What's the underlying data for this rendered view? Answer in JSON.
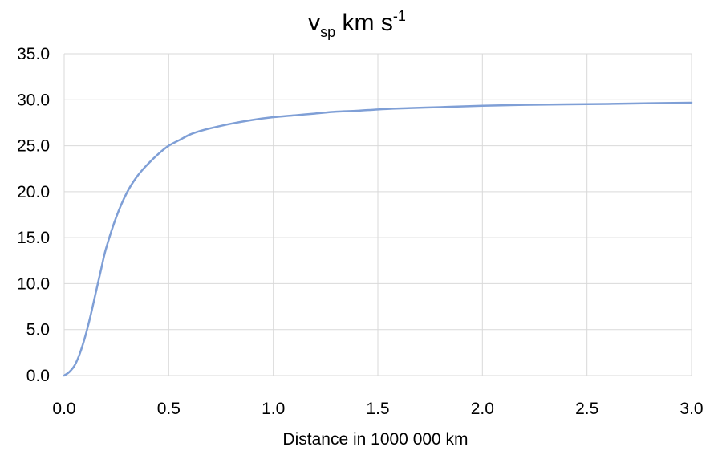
{
  "chart_data": {
    "type": "line",
    "title": {
      "main": "v",
      "subscript": "sp",
      "unit": " km s",
      "superscript": "-1"
    },
    "xlabel": "Distance in 1000 000 km",
    "ylabel": "",
    "xlim": [
      0,
      3.0
    ],
    "ylim": [
      0,
      35.0
    ],
    "xticks": [
      "0.0",
      "0.5",
      "1.0",
      "1.5",
      "2.0",
      "2.5",
      "3.0"
    ],
    "yticks": [
      "0.0",
      "5.0",
      "10.0",
      "15.0",
      "20.0",
      "25.0",
      "30.0",
      "35.0"
    ],
    "grid": true,
    "legend": "none",
    "series": [
      {
        "color": "#7f9fd6",
        "x": [
          0.0,
          0.025,
          0.05,
          0.075,
          0.1,
          0.125,
          0.15,
          0.175,
          0.2,
          0.25,
          0.3,
          0.35,
          0.4,
          0.45,
          0.5,
          0.55,
          0.6,
          0.65,
          0.7,
          0.8,
          0.9,
          1.0,
          1.1,
          1.2,
          1.3,
          1.4,
          1.5,
          1.6,
          1.8,
          2.0,
          2.2,
          2.4,
          2.6,
          2.8,
          3.0
        ],
        "y": [
          0.0,
          0.4,
          1.1,
          2.4,
          4.2,
          6.4,
          8.9,
          11.4,
          13.8,
          17.3,
          19.9,
          21.7,
          23.0,
          24.1,
          25.0,
          25.6,
          26.2,
          26.6,
          26.9,
          27.4,
          27.8,
          28.1,
          28.3,
          28.5,
          28.7,
          28.8,
          28.95,
          29.05,
          29.2,
          29.35,
          29.45,
          29.5,
          29.55,
          29.62,
          29.68
        ]
      }
    ]
  }
}
